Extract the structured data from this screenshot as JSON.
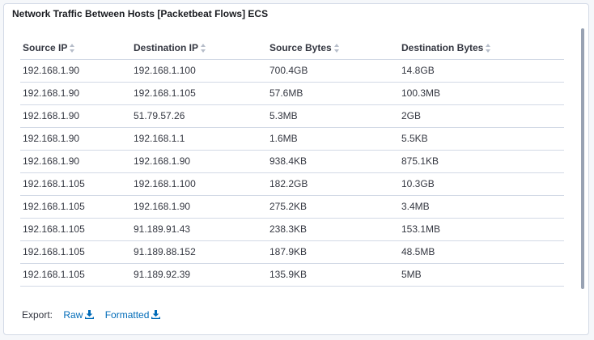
{
  "panel": {
    "title": "Network Traffic Between Hosts [Packetbeat Flows] ECS"
  },
  "table": {
    "columns": [
      "Source IP",
      "Destination IP",
      "Source Bytes",
      "Destination Bytes"
    ],
    "rows": [
      [
        "192.168.1.90",
        "192.168.1.100",
        "700.4GB",
        "14.8GB"
      ],
      [
        "192.168.1.90",
        "192.168.1.105",
        "57.6MB",
        "100.3MB"
      ],
      [
        "192.168.1.90",
        "51.79.57.26",
        "5.3MB",
        "2GB"
      ],
      [
        "192.168.1.90",
        "192.168.1.1",
        "1.6MB",
        "5.5KB"
      ],
      [
        "192.168.1.90",
        "192.168.1.90",
        "938.4KB",
        "875.1KB"
      ],
      [
        "192.168.1.105",
        "192.168.1.100",
        "182.2GB",
        "10.3GB"
      ],
      [
        "192.168.1.105",
        "192.168.1.90",
        "275.2KB",
        "3.4MB"
      ],
      [
        "192.168.1.105",
        "91.189.91.43",
        "238.3KB",
        "153.1MB"
      ],
      [
        "192.168.1.105",
        "91.189.88.152",
        "187.9KB",
        "48.5MB"
      ],
      [
        "192.168.1.105",
        "91.189.92.39",
        "135.9KB",
        "5MB"
      ]
    ]
  },
  "export": {
    "label": "Export:",
    "raw_label": "Raw",
    "formatted_label": "Formatted",
    "icon": "download-icon"
  },
  "colors": {
    "link": "#006bb8",
    "text": "#343741",
    "border": "#d3dae6"
  }
}
